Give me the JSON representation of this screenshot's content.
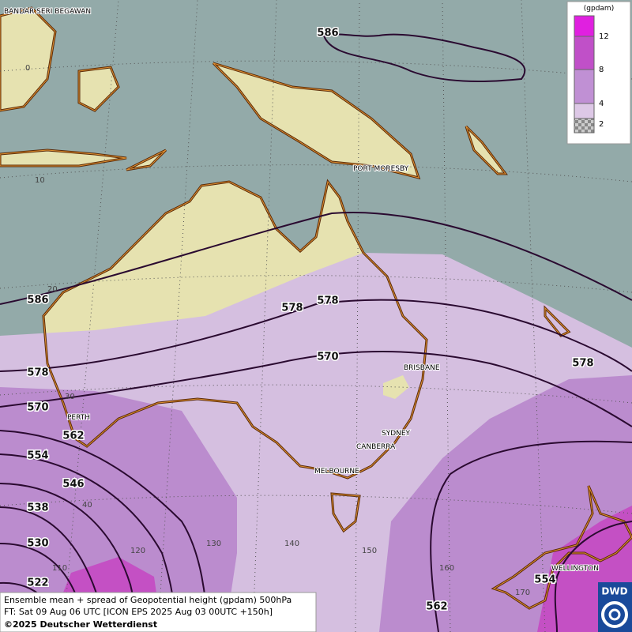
{
  "map": {
    "product": "Ensemble mean + spread of Geopotential height (gpdam) 500hPa",
    "forecast_time": "FT: Sat 09 Aug 06 UTC [ICON EPS 2025 Aug 03 00UTC +150h]",
    "copyright": "©2025 Deutscher Wetterdienst",
    "logo": "DWD",
    "legend": {
      "unit": "(gpdam)",
      "colors": [
        "#e020e0",
        "#c050c8",
        "#c090d4",
        "#ddc8e6"
      ],
      "ticks": [
        "12",
        "8",
        "4",
        "2"
      ]
    },
    "cities": [
      "BANDAR SERI BEGAWAN",
      "PORT MORESBY",
      "BRISBANE",
      "SYDNEY",
      "CANBERRA",
      "MELBOURNE",
      "PERTH",
      "WELLINGTON"
    ],
    "grid_labels": [
      "0",
      "10",
      "20",
      "30",
      "40",
      "110",
      "120",
      "130",
      "140",
      "150",
      "160",
      "170"
    ],
    "contour_labels": [
      "586",
      "586",
      "578",
      "578",
      "578",
      "578",
      "570",
      "570",
      "562",
      "562",
      "554",
      "554",
      "546",
      "538",
      "530",
      "522"
    ]
  }
}
